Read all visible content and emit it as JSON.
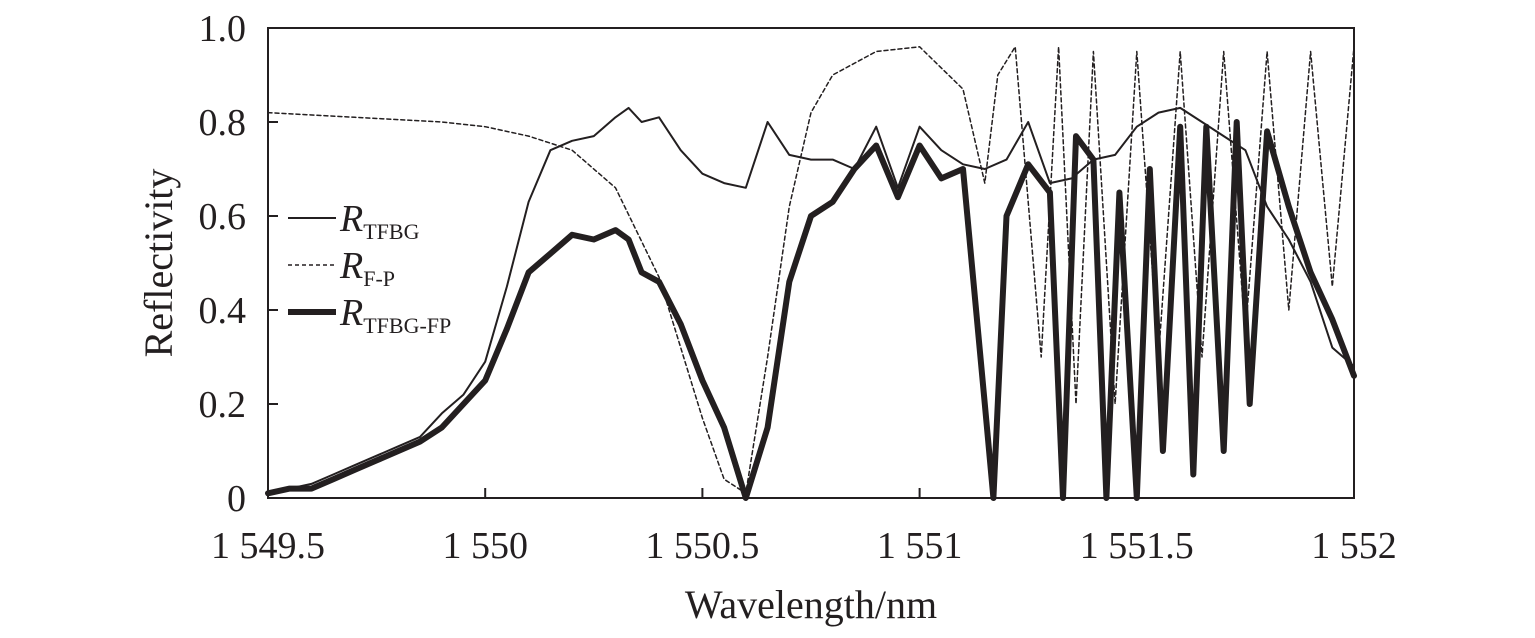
{
  "chart_data": {
    "type": "line",
    "title": "",
    "xlabel": "Wavelength/nm",
    "ylabel": "Reflectivity",
    "xlim": [
      1549.5,
      1552
    ],
    "ylim": [
      0,
      1.0
    ],
    "x_ticks": [
      1549.5,
      1550,
      1550.5,
      1551,
      1551.5,
      1552
    ],
    "x_tick_labels": [
      "1 549.5",
      "1 550",
      "1 550.5",
      "1 551",
      "1 551.5",
      "1 552"
    ],
    "y_ticks": [
      0,
      0.2,
      0.4,
      0.6,
      0.8,
      1.0
    ],
    "y_tick_labels": [
      "0",
      "0.2",
      "0.4",
      "0.6",
      "0.8",
      "1.0"
    ],
    "grid": false,
    "legend_position": "left",
    "series": [
      {
        "name": "R_TFBG",
        "label_main": "R",
        "label_sub": "TFBG",
        "style": "solid-thin",
        "x": [
          1549.5,
          1549.55,
          1549.6,
          1549.65,
          1549.7,
          1549.75,
          1549.8,
          1549.85,
          1549.9,
          1549.95,
          1550.0,
          1550.05,
          1550.1,
          1550.15,
          1550.2,
          1550.25,
          1550.3,
          1550.33,
          1550.36,
          1550.4,
          1550.45,
          1550.5,
          1550.55,
          1550.6,
          1550.65,
          1550.7,
          1550.75,
          1550.8,
          1550.85,
          1550.9,
          1550.95,
          1551.0,
          1551.05,
          1551.1,
          1551.15,
          1551.2,
          1551.25,
          1551.3,
          1551.35,
          1551.4,
          1551.45,
          1551.5,
          1551.55,
          1551.6,
          1551.65,
          1551.7,
          1551.75,
          1551.8,
          1551.85,
          1551.9,
          1551.95,
          1552.0
        ],
        "y": [
          0.01,
          0.02,
          0.03,
          0.05,
          0.07,
          0.09,
          0.11,
          0.13,
          0.18,
          0.22,
          0.29,
          0.45,
          0.63,
          0.74,
          0.76,
          0.77,
          0.81,
          0.83,
          0.8,
          0.81,
          0.74,
          0.69,
          0.67,
          0.66,
          0.8,
          0.73,
          0.72,
          0.72,
          0.7,
          0.79,
          0.66,
          0.79,
          0.74,
          0.71,
          0.7,
          0.72,
          0.8,
          0.67,
          0.68,
          0.72,
          0.73,
          0.79,
          0.82,
          0.83,
          0.8,
          0.77,
          0.74,
          0.62,
          0.55,
          0.46,
          0.32,
          0.28
        ]
      },
      {
        "name": "R_F-P",
        "label_main": "R",
        "label_sub": "F-P",
        "style": "dashed",
        "x": [
          1549.5,
          1549.7,
          1549.9,
          1550.0,
          1550.1,
          1550.2,
          1550.3,
          1550.4,
          1550.5,
          1550.55,
          1550.6,
          1550.65,
          1550.7,
          1550.75,
          1550.8,
          1550.9,
          1551.0,
          1551.1,
          1551.15,
          1551.18,
          1551.22,
          1551.28,
          1551.32,
          1551.36,
          1551.4,
          1551.45,
          1551.5,
          1551.55,
          1551.6,
          1551.65,
          1551.7,
          1551.75,
          1551.8,
          1551.85,
          1551.9,
          1551.95,
          1552.0
        ],
        "y": [
          0.82,
          0.81,
          0.8,
          0.79,
          0.77,
          0.74,
          0.66,
          0.47,
          0.17,
          0.04,
          0.01,
          0.3,
          0.62,
          0.82,
          0.9,
          0.95,
          0.96,
          0.87,
          0.67,
          0.9,
          0.96,
          0.3,
          0.96,
          0.2,
          0.95,
          0.2,
          0.95,
          0.3,
          0.95,
          0.3,
          0.95,
          0.35,
          0.95,
          0.4,
          0.95,
          0.45,
          0.96
        ]
      },
      {
        "name": "R_TFBG-FP",
        "label_main": "R",
        "label_sub": "TFBG-FP",
        "style": "solid-thick",
        "x": [
          1549.5,
          1549.55,
          1549.6,
          1549.65,
          1549.7,
          1549.75,
          1549.8,
          1549.85,
          1549.9,
          1549.95,
          1550.0,
          1550.05,
          1550.1,
          1550.15,
          1550.2,
          1550.25,
          1550.3,
          1550.33,
          1550.36,
          1550.4,
          1550.45,
          1550.5,
          1550.55,
          1550.6,
          1550.65,
          1550.7,
          1550.75,
          1550.8,
          1550.85,
          1550.9,
          1550.95,
          1551.0,
          1551.05,
          1551.1,
          1551.15,
          1551.17,
          1551.2,
          1551.25,
          1551.3,
          1551.33,
          1551.36,
          1551.4,
          1551.43,
          1551.46,
          1551.5,
          1551.53,
          1551.56,
          1551.6,
          1551.63,
          1551.66,
          1551.7,
          1551.73,
          1551.76,
          1551.8,
          1551.85,
          1551.9,
          1551.95,
          1552.0
        ],
        "y": [
          0.01,
          0.02,
          0.02,
          0.04,
          0.06,
          0.08,
          0.1,
          0.12,
          0.15,
          0.2,
          0.25,
          0.36,
          0.48,
          0.52,
          0.56,
          0.55,
          0.57,
          0.55,
          0.48,
          0.46,
          0.37,
          0.25,
          0.15,
          0.0,
          0.15,
          0.46,
          0.6,
          0.63,
          0.7,
          0.75,
          0.64,
          0.75,
          0.68,
          0.7,
          0.2,
          0.0,
          0.6,
          0.71,
          0.65,
          0.0,
          0.77,
          0.72,
          0.0,
          0.65,
          0.0,
          0.7,
          0.1,
          0.79,
          0.05,
          0.79,
          0.1,
          0.8,
          0.2,
          0.78,
          0.62,
          0.48,
          0.38,
          0.26
        ]
      }
    ]
  }
}
